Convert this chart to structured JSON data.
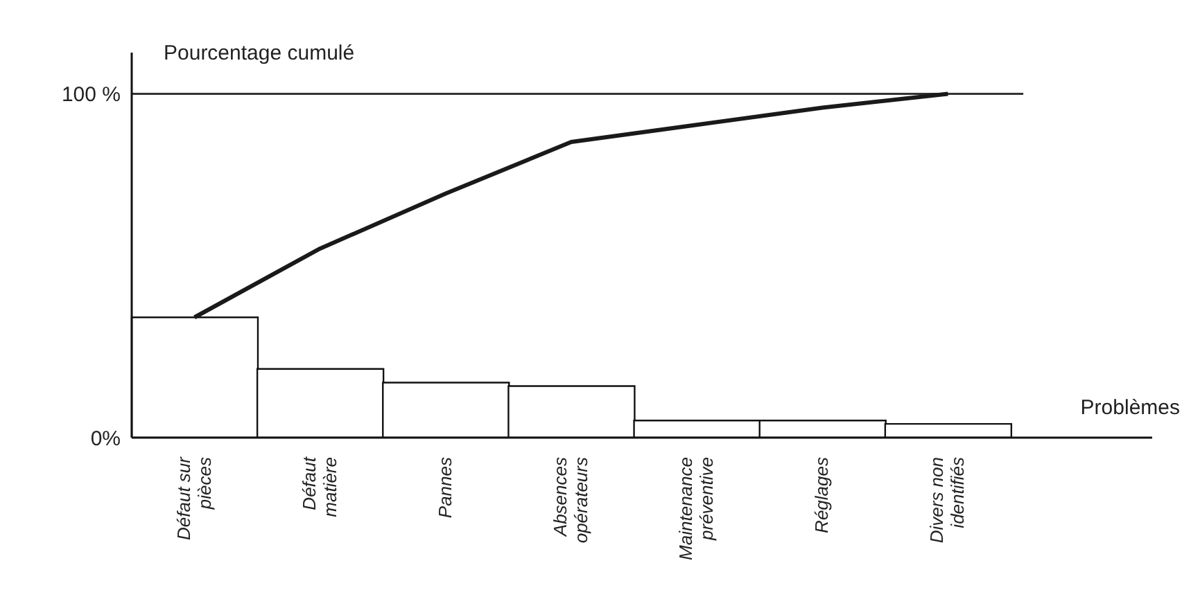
{
  "chart_data": {
    "type": "bar",
    "ylabel": "Pourcentage cumulé",
    "xlabel": "Problèmes",
    "categories": [
      "Défaut sur\npièces",
      "Défaut\nmatière",
      "Pannes",
      "Absences\nopérateurs",
      "Maintenance\npréventive",
      "Réglages",
      "Divers non\nidentifiés"
    ],
    "series": [
      {
        "color": "#ffffff",
        "values": [
          35,
          20,
          16,
          15,
          5,
          5,
          4
        ]
      },
      {
        "type": "line",
        "color": "#1a1a1a",
        "values": [
          35,
          55,
          71,
          86,
          91,
          96,
          100
        ]
      }
    ],
    "ylim": [
      0,
      112
    ],
    "yticks": [
      {
        "value": 0,
        "label": "0%"
      },
      {
        "value": 100,
        "label": "100 %"
      }
    ],
    "ref_lines": [
      {
        "axis": "y",
        "value": 100,
        "color": "#333333"
      }
    ],
    "grid": false,
    "marker": "none",
    "line_style": "solid"
  }
}
